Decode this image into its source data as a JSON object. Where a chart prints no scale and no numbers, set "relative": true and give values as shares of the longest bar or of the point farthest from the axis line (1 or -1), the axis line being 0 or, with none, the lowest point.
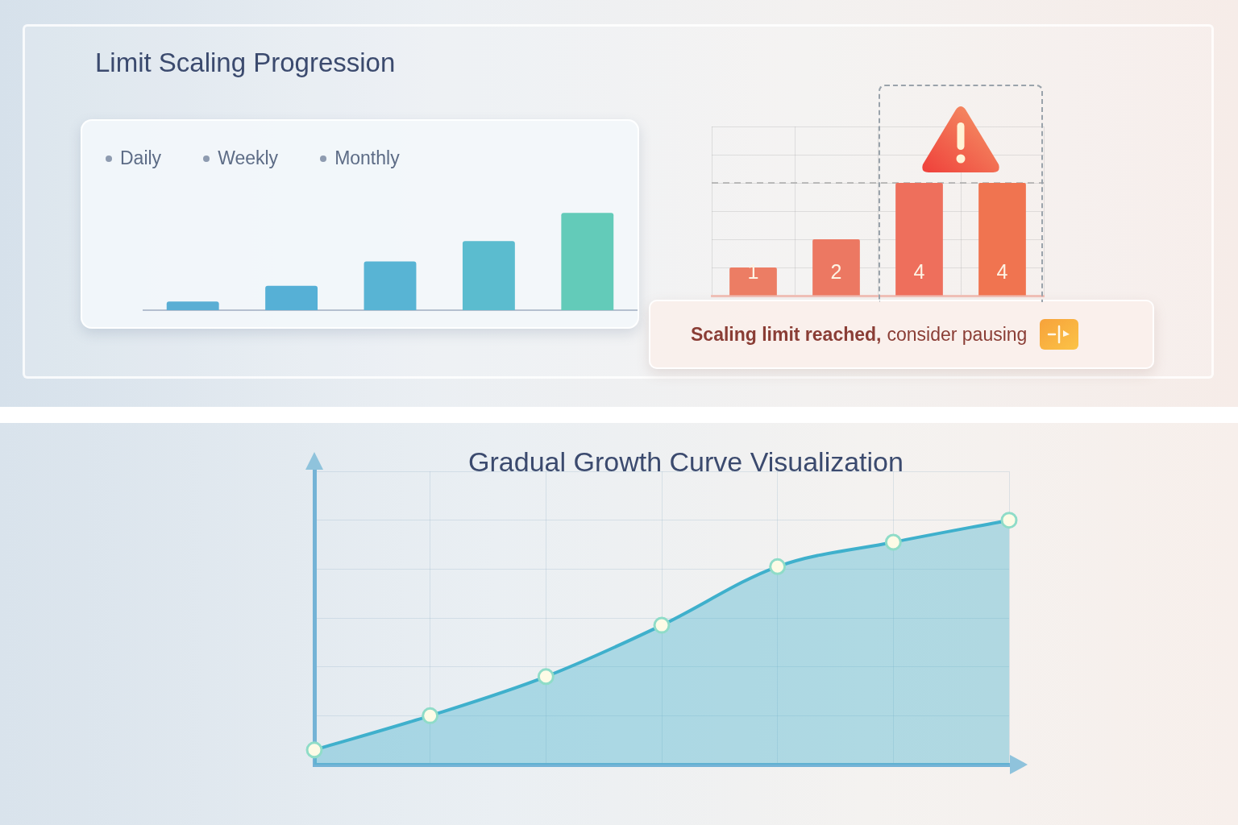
{
  "chart_data": [
    {
      "type": "bar",
      "title": "Limit Scaling Progression",
      "annotations": [
        "Daily",
        "Weekly",
        "Monthly"
      ],
      "categories": [
        null,
        null,
        null,
        null,
        null
      ],
      "values": [
        0.09,
        0.25,
        0.5,
        0.71,
        1
      ],
      "colors": [
        "#5aaed4",
        "#56b0d6",
        "#58b4d4",
        "#5bbccf",
        "#63cbb9"
      ],
      "relative": true,
      "tick_labels": false
    },
    {
      "type": "bar",
      "categories": [
        null,
        null,
        null,
        null
      ],
      "values": [
        1,
        2,
        4,
        4
      ],
      "colors": [
        "#ec7d64",
        "#ec7862",
        "#ee6f5c",
        "#f07450"
      ],
      "data_labels": true,
      "grid": true,
      "tick_labels": false,
      "ref_lines": [
        {
          "axis": "y",
          "value": 4,
          "color": "#a9a9a9",
          "line_style": "dashed"
        }
      ],
      "annotations": [
        "Scaling limit reached,",
        "consider pausing"
      ]
    },
    {
      "type": "area",
      "title": "Gradual Growth Curve Visualization",
      "categories": [
        null,
        null,
        null,
        null,
        null,
        null,
        null
      ],
      "relative": true,
      "grid": true,
      "tick_labels": false,
      "marker": "circle",
      "series": [
        {
          "color": "#3fb0cc",
          "values": [
            0.06,
            0.2,
            0.36,
            0.57,
            0.81,
            0.91,
            1
          ]
        }
      ]
    }
  ]
}
